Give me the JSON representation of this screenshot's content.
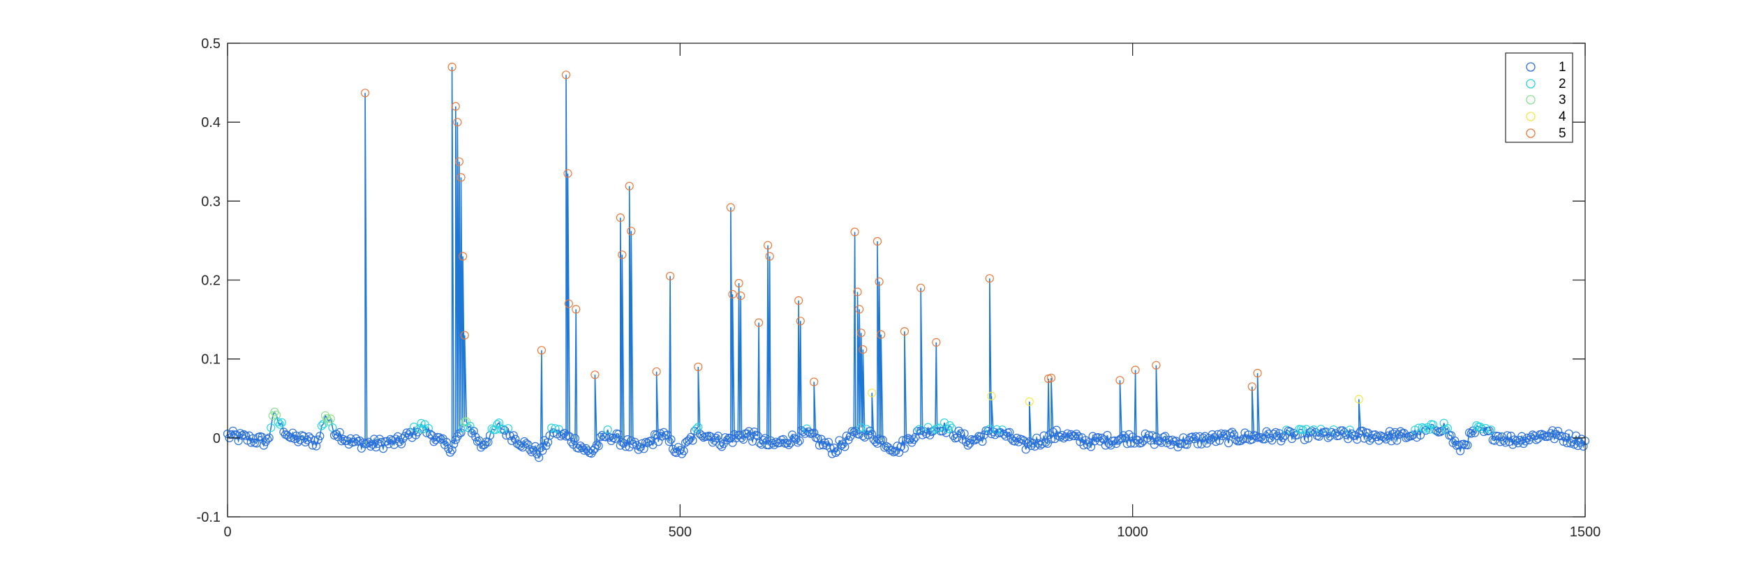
{
  "chart_data": {
    "type": "line",
    "title": "",
    "xlabel": "",
    "ylabel": "",
    "xlim": [
      0,
      1500
    ],
    "ylim": [
      -0.1,
      0.5
    ],
    "xticks": [
      0,
      500,
      1000,
      1500
    ],
    "yticks": [
      -0.1,
      0,
      0.1,
      0.2,
      0.3,
      0.4,
      0.5
    ],
    "xtick_labels": [
      "0",
      "500",
      "1000",
      "1500"
    ],
    "ytick_labels": [
      "-0.1",
      "0",
      "0.1",
      "0.2",
      "0.3",
      "0.4",
      "0.5"
    ],
    "grid": false,
    "legend_position": "top-right",
    "line_color": "#1f77d4",
    "marker": "circle-open",
    "classes": [
      {
        "name": "1",
        "color": "#2a6fdb"
      },
      {
        "name": "2",
        "color": "#2ad4e0"
      },
      {
        "name": "3",
        "color": "#8be08f"
      },
      {
        "name": "4",
        "color": "#f0e64a"
      },
      {
        "name": "5",
        "color": "#e8793a"
      }
    ],
    "class_thresholds": [
      0.01,
      0.02,
      0.035,
      0.06
    ],
    "baseline_segments": [
      [
        0,
        0.003
      ],
      [
        45,
        -0.005
      ],
      [
        50,
        0.03
      ],
      [
        70,
        0.0
      ],
      [
        100,
        -0.005
      ],
      [
        108,
        0.03
      ],
      [
        118,
        0.01
      ],
      [
        135,
        -0.005
      ],
      [
        160,
        -0.008
      ],
      [
        190,
        -0.005
      ],
      [
        215,
        0.015
      ],
      [
        240,
        -0.01
      ],
      [
        248,
        -0.012
      ],
      [
        265,
        0.02
      ],
      [
        280,
        -0.01
      ],
      [
        300,
        0.015
      ],
      [
        330,
        -0.01
      ],
      [
        345,
        -0.02
      ],
      [
        360,
        0.01
      ],
      [
        385,
        -0.005
      ],
      [
        400,
        -0.02
      ],
      [
        420,
        0.005
      ],
      [
        455,
        -0.015
      ],
      [
        480,
        0.005
      ],
      [
        500,
        -0.02
      ],
      [
        520,
        0.01
      ],
      [
        545,
        -0.005
      ],
      [
        575,
        0.005
      ],
      [
        600,
        -0.01
      ],
      [
        640,
        0.005
      ],
      [
        670,
        -0.015
      ],
      [
        700,
        0.01
      ],
      [
        740,
        -0.015
      ],
      [
        760,
        0.005
      ],
      [
        790,
        0.015
      ],
      [
        820,
        -0.005
      ],
      [
        850,
        0.01
      ],
      [
        880,
        -0.01
      ],
      [
        920,
        0.005
      ],
      [
        950,
        -0.005
      ],
      [
        1000,
        0.0
      ],
      [
        1050,
        -0.005
      ],
      [
        1100,
        0.0
      ],
      [
        1150,
        0.002
      ],
      [
        1200,
        0.005
      ],
      [
        1250,
        0.003
      ],
      [
        1300,
        0.002
      ],
      [
        1345,
        0.015
      ],
      [
        1360,
        -0.015
      ],
      [
        1380,
        0.01
      ],
      [
        1420,
        -0.003
      ],
      [
        1460,
        0.005
      ],
      [
        1500,
        -0.005
      ]
    ],
    "spikes": [
      {
        "x": 152,
        "y": 0.437
      },
      {
        "x": 248,
        "y": 0.47
      },
      {
        "x": 252,
        "y": 0.42
      },
      {
        "x": 254,
        "y": 0.4
      },
      {
        "x": 256,
        "y": 0.35
      },
      {
        "x": 258,
        "y": 0.33
      },
      {
        "x": 260,
        "y": 0.23
      },
      {
        "x": 262,
        "y": 0.13
      },
      {
        "x": 347,
        "y": 0.111
      },
      {
        "x": 374,
        "y": 0.46
      },
      {
        "x": 376,
        "y": 0.335
      },
      {
        "x": 377,
        "y": 0.17
      },
      {
        "x": 385,
        "y": 0.163
      },
      {
        "x": 406,
        "y": 0.08
      },
      {
        "x": 434,
        "y": 0.279
      },
      {
        "x": 436,
        "y": 0.232
      },
      {
        "x": 444,
        "y": 0.319
      },
      {
        "x": 446,
        "y": 0.262
      },
      {
        "x": 474,
        "y": 0.084
      },
      {
        "x": 489,
        "y": 0.205
      },
      {
        "x": 520,
        "y": 0.09
      },
      {
        "x": 556,
        "y": 0.292
      },
      {
        "x": 558,
        "y": 0.182
      },
      {
        "x": 565,
        "y": 0.196
      },
      {
        "x": 567,
        "y": 0.18
      },
      {
        "x": 587,
        "y": 0.146
      },
      {
        "x": 597,
        "y": 0.244
      },
      {
        "x": 599,
        "y": 0.23
      },
      {
        "x": 631,
        "y": 0.174
      },
      {
        "x": 633,
        "y": 0.148
      },
      {
        "x": 648,
        "y": 0.071
      },
      {
        "x": 693,
        "y": 0.261
      },
      {
        "x": 696,
        "y": 0.185
      },
      {
        "x": 698,
        "y": 0.163
      },
      {
        "x": 700,
        "y": 0.133
      },
      {
        "x": 702,
        "y": 0.112
      },
      {
        "x": 712,
        "y": 0.057
      },
      {
        "x": 718,
        "y": 0.249
      },
      {
        "x": 720,
        "y": 0.198
      },
      {
        "x": 722,
        "y": 0.131
      },
      {
        "x": 748,
        "y": 0.135
      },
      {
        "x": 766,
        "y": 0.19
      },
      {
        "x": 783,
        "y": 0.121
      },
      {
        "x": 842,
        "y": 0.202
      },
      {
        "x": 844,
        "y": 0.053
      },
      {
        "x": 886,
        "y": 0.046
      },
      {
        "x": 907,
        "y": 0.075
      },
      {
        "x": 910,
        "y": 0.076
      },
      {
        "x": 986,
        "y": 0.073
      },
      {
        "x": 1003,
        "y": 0.086
      },
      {
        "x": 1026,
        "y": 0.092
      },
      {
        "x": 1132,
        "y": 0.065
      },
      {
        "x": 1138,
        "y": 0.082
      },
      {
        "x": 1250,
        "y": 0.049
      }
    ]
  },
  "legend": {
    "items": [
      {
        "label": "1"
      },
      {
        "label": "2"
      },
      {
        "label": "3"
      },
      {
        "label": "4"
      },
      {
        "label": "5"
      }
    ]
  }
}
